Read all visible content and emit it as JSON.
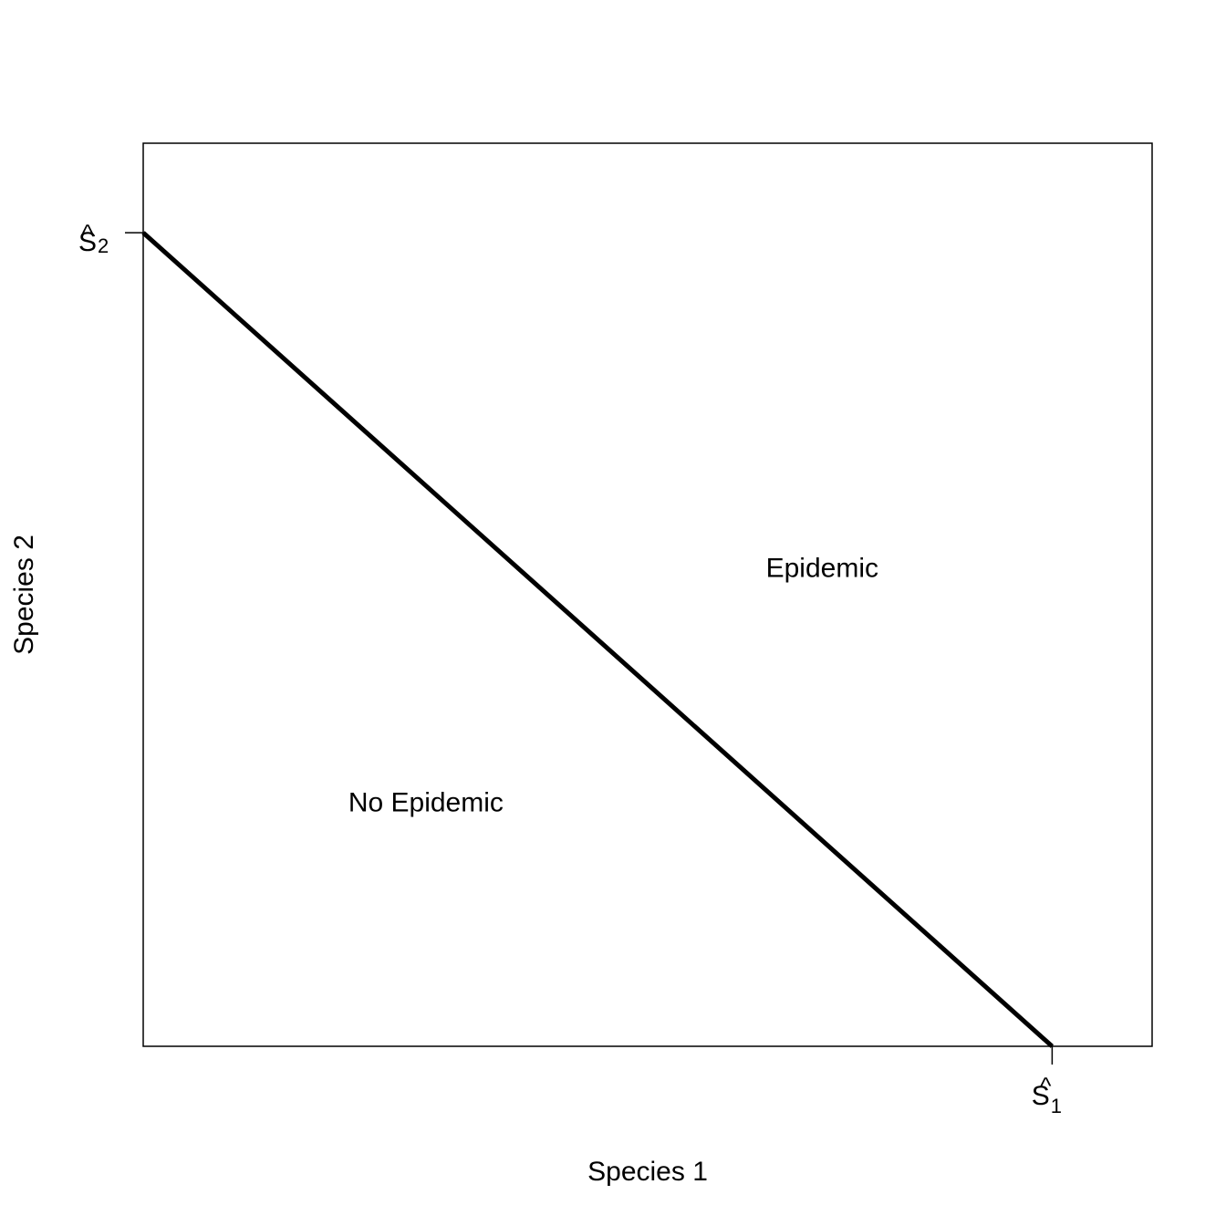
{
  "chart_data": {
    "type": "line",
    "title": "",
    "xlabel": "Species 1",
    "ylabel": "Species 2",
    "xlim": [
      0,
      1.11
    ],
    "ylim": [
      0,
      1.11
    ],
    "grid": false,
    "legend": "none",
    "series": [
      {
        "x": [
          0,
          1
        ],
        "y": [
          1,
          0
        ],
        "color": "#000000"
      }
    ],
    "x_ticks": [
      {
        "value": 1,
        "label": "S",
        "hat": "^",
        "sub": "1"
      }
    ],
    "y_ticks": [
      {
        "value": 1,
        "label": "S",
        "hat": "^",
        "sub": "2"
      }
    ],
    "annotations": [
      {
        "text": "Epidemic",
        "x": 0.747,
        "y": 0.588
      },
      {
        "text": "No Epidemic",
        "x": 0.311,
        "y": 0.3
      }
    ]
  }
}
